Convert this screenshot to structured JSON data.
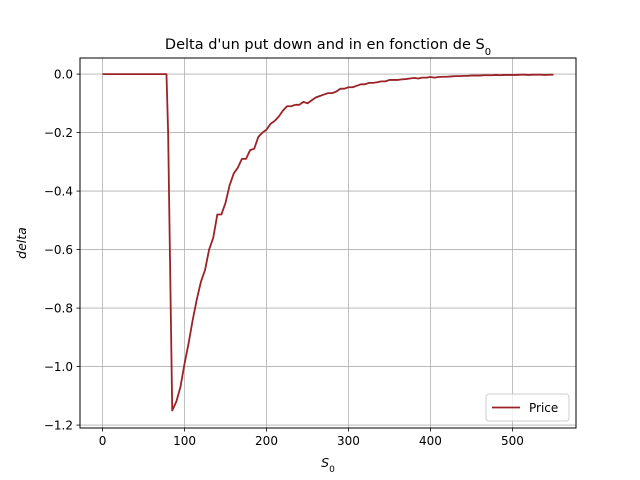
{
  "chart_data": {
    "type": "line",
    "title": "Delta d'un put down and in en fonction de S",
    "title_subscript": "0",
    "xlabel": "S",
    "xlabel_subscript": "0",
    "ylabel": "delta",
    "xlim": [
      -27.5,
      577.5
    ],
    "ylim": [
      -1.21,
      0.055
    ],
    "xticks": [
      0,
      100,
      200,
      300,
      400,
      500
    ],
    "yticks": [
      0.0,
      -0.2,
      -0.4,
      -0.6,
      -0.8,
      -1.0,
      -1.2
    ],
    "ytick_labels": [
      "0.0",
      "−0.2",
      "−0.4",
      "−0.6",
      "−0.8",
      "−1.0",
      "−1.2"
    ],
    "grid": true,
    "legend_position": "lower-right",
    "series": [
      {
        "name": "Price",
        "color": "#9b2226",
        "x": [
          0,
          10,
          20,
          30,
          40,
          50,
          60,
          70,
          78,
          80,
          85,
          90,
          95,
          100,
          105,
          110,
          115,
          120,
          125,
          130,
          135,
          140,
          145,
          150,
          155,
          160,
          165,
          170,
          175,
          180,
          185,
          190,
          195,
          200,
          205,
          210,
          215,
          220,
          225,
          230,
          235,
          240,
          245,
          250,
          255,
          260,
          265,
          270,
          275,
          280,
          285,
          290,
          295,
          300,
          305,
          310,
          315,
          320,
          325,
          330,
          335,
          340,
          345,
          350,
          355,
          360,
          365,
          370,
          375,
          380,
          385,
          390,
          395,
          400,
          405,
          410,
          415,
          420,
          425,
          430,
          435,
          440,
          445,
          450,
          455,
          460,
          465,
          470,
          475,
          480,
          485,
          490,
          495,
          500,
          505,
          510,
          515,
          520,
          525,
          530,
          535,
          540,
          545,
          550
        ],
        "y": [
          0,
          0,
          0,
          0,
          0,
          0,
          0,
          0,
          0,
          -0.2,
          -1.15,
          -1.12,
          -1.07,
          -0.99,
          -0.92,
          -0.84,
          -0.77,
          -0.71,
          -0.67,
          -0.6,
          -0.56,
          -0.48,
          -0.48,
          -0.44,
          -0.38,
          -0.34,
          -0.32,
          -0.29,
          -0.29,
          -0.26,
          -0.255,
          -0.215,
          -0.2,
          -0.19,
          -0.17,
          -0.16,
          -0.145,
          -0.125,
          -0.11,
          -0.11,
          -0.105,
          -0.105,
          -0.095,
          -0.1,
          -0.09,
          -0.08,
          -0.075,
          -0.07,
          -0.065,
          -0.065,
          -0.06,
          -0.05,
          -0.05,
          -0.045,
          -0.045,
          -0.04,
          -0.035,
          -0.035,
          -0.03,
          -0.03,
          -0.028,
          -0.025,
          -0.025,
          -0.02,
          -0.02,
          -0.02,
          -0.018,
          -0.017,
          -0.015,
          -0.013,
          -0.015,
          -0.012,
          -0.012,
          -0.01,
          -0.012,
          -0.01,
          -0.009,
          -0.009,
          -0.008,
          -0.007,
          -0.007,
          -0.006,
          -0.006,
          -0.005,
          -0.005,
          -0.005,
          -0.004,
          -0.004,
          -0.004,
          -0.003,
          -0.004,
          -0.003,
          -0.003,
          -0.003,
          -0.003,
          -0.002,
          -0.002,
          -0.003,
          -0.002,
          -0.002,
          -0.002,
          -0.003,
          -0.002,
          -0.002
        ]
      }
    ]
  }
}
